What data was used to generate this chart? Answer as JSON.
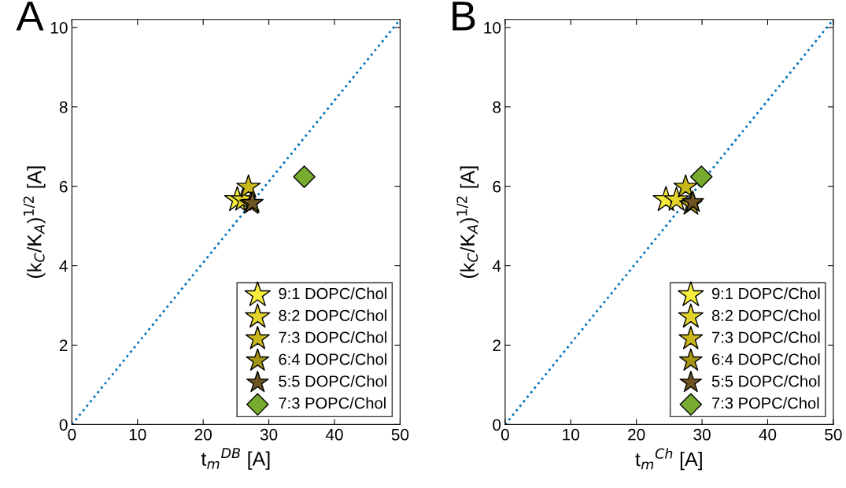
{
  "chart_data": [
    {
      "type": "scatter",
      "annotations": [
        "A"
      ],
      "xlabel": "t$_{m}$$^{DB}$ [A]",
      "ylabel": "(k$_{C}$/K$_{A}$)$^{1/2}$ [A]",
      "xlim": [
        0,
        50
      ],
      "ylim": [
        0,
        10.2
      ],
      "xticks": [
        0,
        10,
        20,
        30,
        40,
        50
      ],
      "yticks": [
        0,
        2,
        4,
        6,
        8,
        10
      ],
      "grid": false,
      "legend": "bottom right",
      "series": [
        {
          "type": "line",
          "x": [
            0,
            50
          ],
          "values": [
            0,
            10.2
          ],
          "color": "#0072bd",
          "line_style": "dotted",
          "marker": "none"
        },
        {
          "name": "9:1 DOPC/Chol",
          "x": [
            25.2
          ],
          "values": [
            5.66
          ],
          "color": "#f5ec3c",
          "marker": "star"
        },
        {
          "name": "8:2 DOPC/Chol",
          "x": [
            26.1
          ],
          "values": [
            5.66
          ],
          "color": "#e3d42c",
          "marker": "star"
        },
        {
          "name": "7:3 DOPC/Chol",
          "x": [
            26.9
          ],
          "values": [
            5.98
          ],
          "color": "#c9b81c",
          "marker": "star"
        },
        {
          "name": "6:4 DOPC/Chol",
          "x": [
            27.3
          ],
          "values": [
            5.56
          ],
          "color": "#a69514",
          "marker": "star"
        },
        {
          "name": "5:5 DOPC/Chol",
          "x": [
            27.5
          ],
          "values": [
            5.58
          ],
          "color": "#6f5424",
          "marker": "star"
        },
        {
          "name": "7:3 POPC/Chol",
          "x": [
            35.4
          ],
          "values": [
            6.24
          ],
          "color": "#77ac30",
          "marker": "diamond"
        }
      ]
    },
    {
      "type": "scatter",
      "annotations": [
        "B"
      ],
      "xlabel": "t$_{m}$$^{Ch}$ [A]",
      "ylabel": "(k$_{C}$/K$_{A}$)$^{1/2}$ [A]",
      "xlim": [
        0,
        50
      ],
      "ylim": [
        0,
        10.2
      ],
      "xticks": [
        0,
        10,
        20,
        30,
        40,
        50
      ],
      "yticks": [
        0,
        2,
        4,
        6,
        8,
        10
      ],
      "grid": false,
      "legend": "bottom right",
      "series": [
        {
          "type": "line",
          "x": [
            0,
            50
          ],
          "values": [
            0,
            10.2
          ],
          "color": "#0072bd",
          "line_style": "dotted",
          "marker": "none"
        },
        {
          "name": "9:1 DOPC/Chol",
          "x": [
            24.5
          ],
          "values": [
            5.66
          ],
          "color": "#f5ec3c",
          "marker": "star"
        },
        {
          "name": "8:2 DOPC/Chol",
          "x": [
            26.1
          ],
          "values": [
            5.66
          ],
          "color": "#e3d42c",
          "marker": "star"
        },
        {
          "name": "7:3 DOPC/Chol",
          "x": [
            27.5
          ],
          "values": [
            5.98
          ],
          "color": "#c9b81c",
          "marker": "star"
        },
        {
          "name": "6:4 DOPC/Chol",
          "x": [
            28.3
          ],
          "values": [
            5.54
          ],
          "color": "#a69514",
          "marker": "star"
        },
        {
          "name": "5:5 DOPC/Chol",
          "x": [
            28.6
          ],
          "values": [
            5.6
          ],
          "color": "#6f5424",
          "marker": "star"
        },
        {
          "name": "7:3 POPC/Chol",
          "x": [
            29.9
          ],
          "values": [
            6.24
          ],
          "color": "#77ac30",
          "marker": "diamond"
        }
      ]
    }
  ]
}
